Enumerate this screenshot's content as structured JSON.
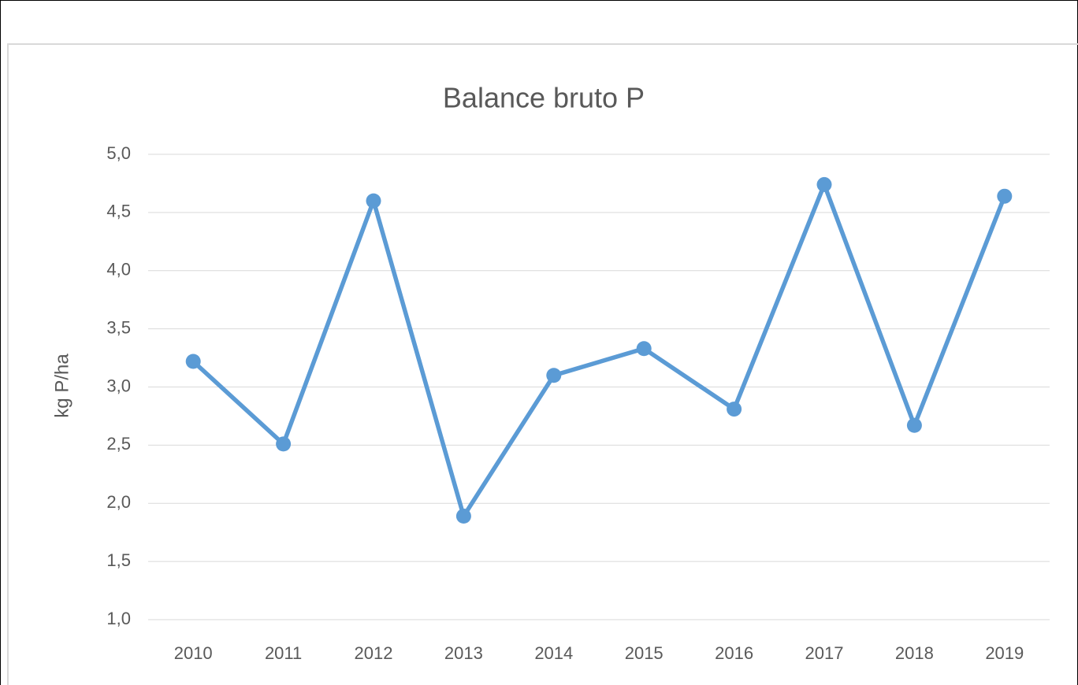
{
  "chart_data": {
    "type": "line",
    "title": "Balance bruto P",
    "y_label": "kg P/ha",
    "categories": [
      "2010",
      "2011",
      "2012",
      "2013",
      "2014",
      "2015",
      "2016",
      "2017",
      "2018",
      "2019"
    ],
    "series": [
      {
        "name": "Balance bruto P",
        "color": "#5b9bd5",
        "values": [
          3.22,
          2.51,
          4.6,
          1.89,
          3.1,
          3.33,
          2.81,
          4.74,
          2.67,
          4.64
        ]
      }
    ],
    "ylim": [
      1.0,
      5.0
    ],
    "yticks": [
      {
        "value": 1.0,
        "label": "1,0"
      },
      {
        "value": 1.5,
        "label": "1,5"
      },
      {
        "value": 2.0,
        "label": "2,0"
      },
      {
        "value": 2.5,
        "label": "2,5"
      },
      {
        "value": 3.0,
        "label": "3,0"
      },
      {
        "value": 3.5,
        "label": "3,5"
      },
      {
        "value": 4.0,
        "label": "4,0"
      },
      {
        "value": 4.5,
        "label": "4,5"
      },
      {
        "value": 5.0,
        "label": "5,0"
      }
    ],
    "grid": true
  }
}
